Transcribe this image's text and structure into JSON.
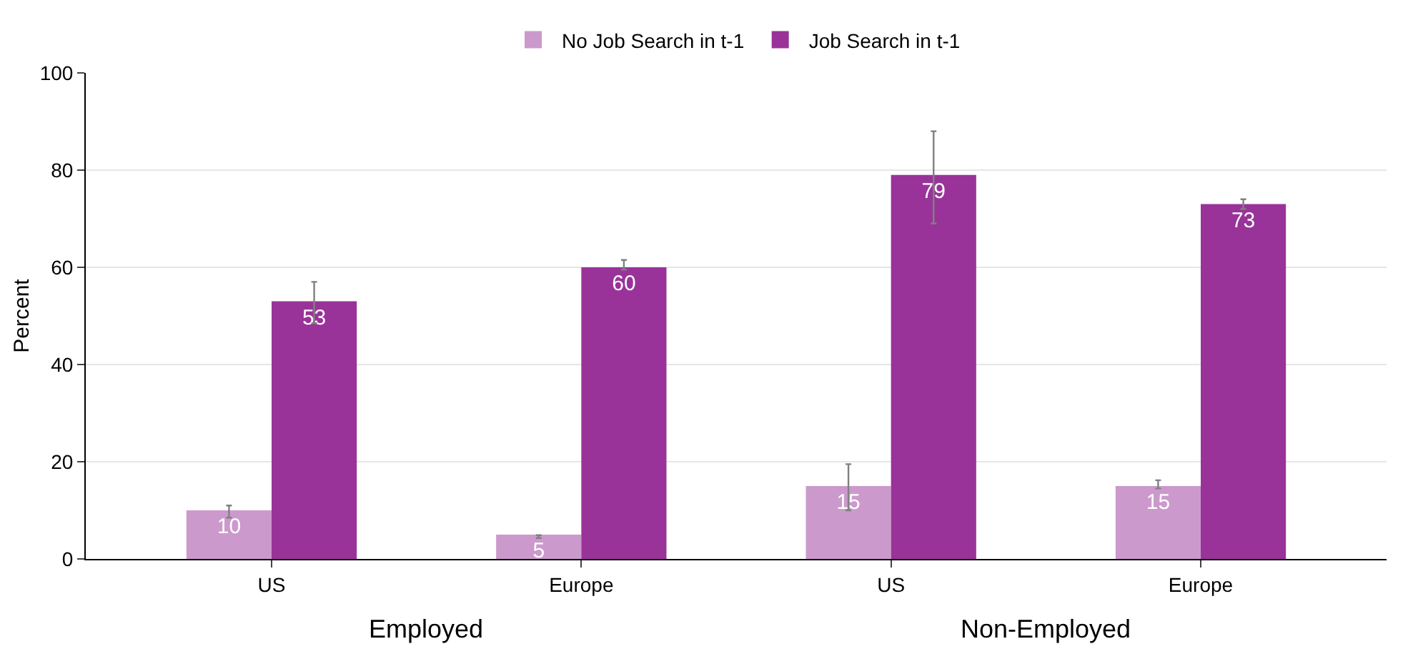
{
  "chart_data": {
    "type": "bar",
    "categories": [
      "US",
      "Europe",
      "US",
      "Europe"
    ],
    "ylabel": "Percent",
    "ylim": [
      0,
      100
    ],
    "yticks": [
      0,
      20,
      40,
      60,
      80,
      100
    ],
    "grid": "y",
    "legend": "top",
    "data_labels": true,
    "annotations": [
      "Employed",
      "Non-Employed"
    ],
    "series": [
      {
        "name": "No Job Search in t-1",
        "color": "#cc99cc",
        "values": [
          10,
          5,
          15,
          15
        ],
        "errors": [
          [
            8.5,
            11
          ],
          [
            4.3,
            4.9
          ],
          [
            10,
            19.5
          ],
          [
            14.5,
            16.2
          ]
        ]
      },
      {
        "name": "Job Search in t-1",
        "color": "#993399",
        "values": [
          53,
          60,
          79,
          73
        ],
        "errors": [
          [
            48.5,
            57
          ],
          [
            59.5,
            61.5
          ],
          [
            69,
            88
          ],
          [
            72,
            74
          ]
        ]
      }
    ]
  }
}
